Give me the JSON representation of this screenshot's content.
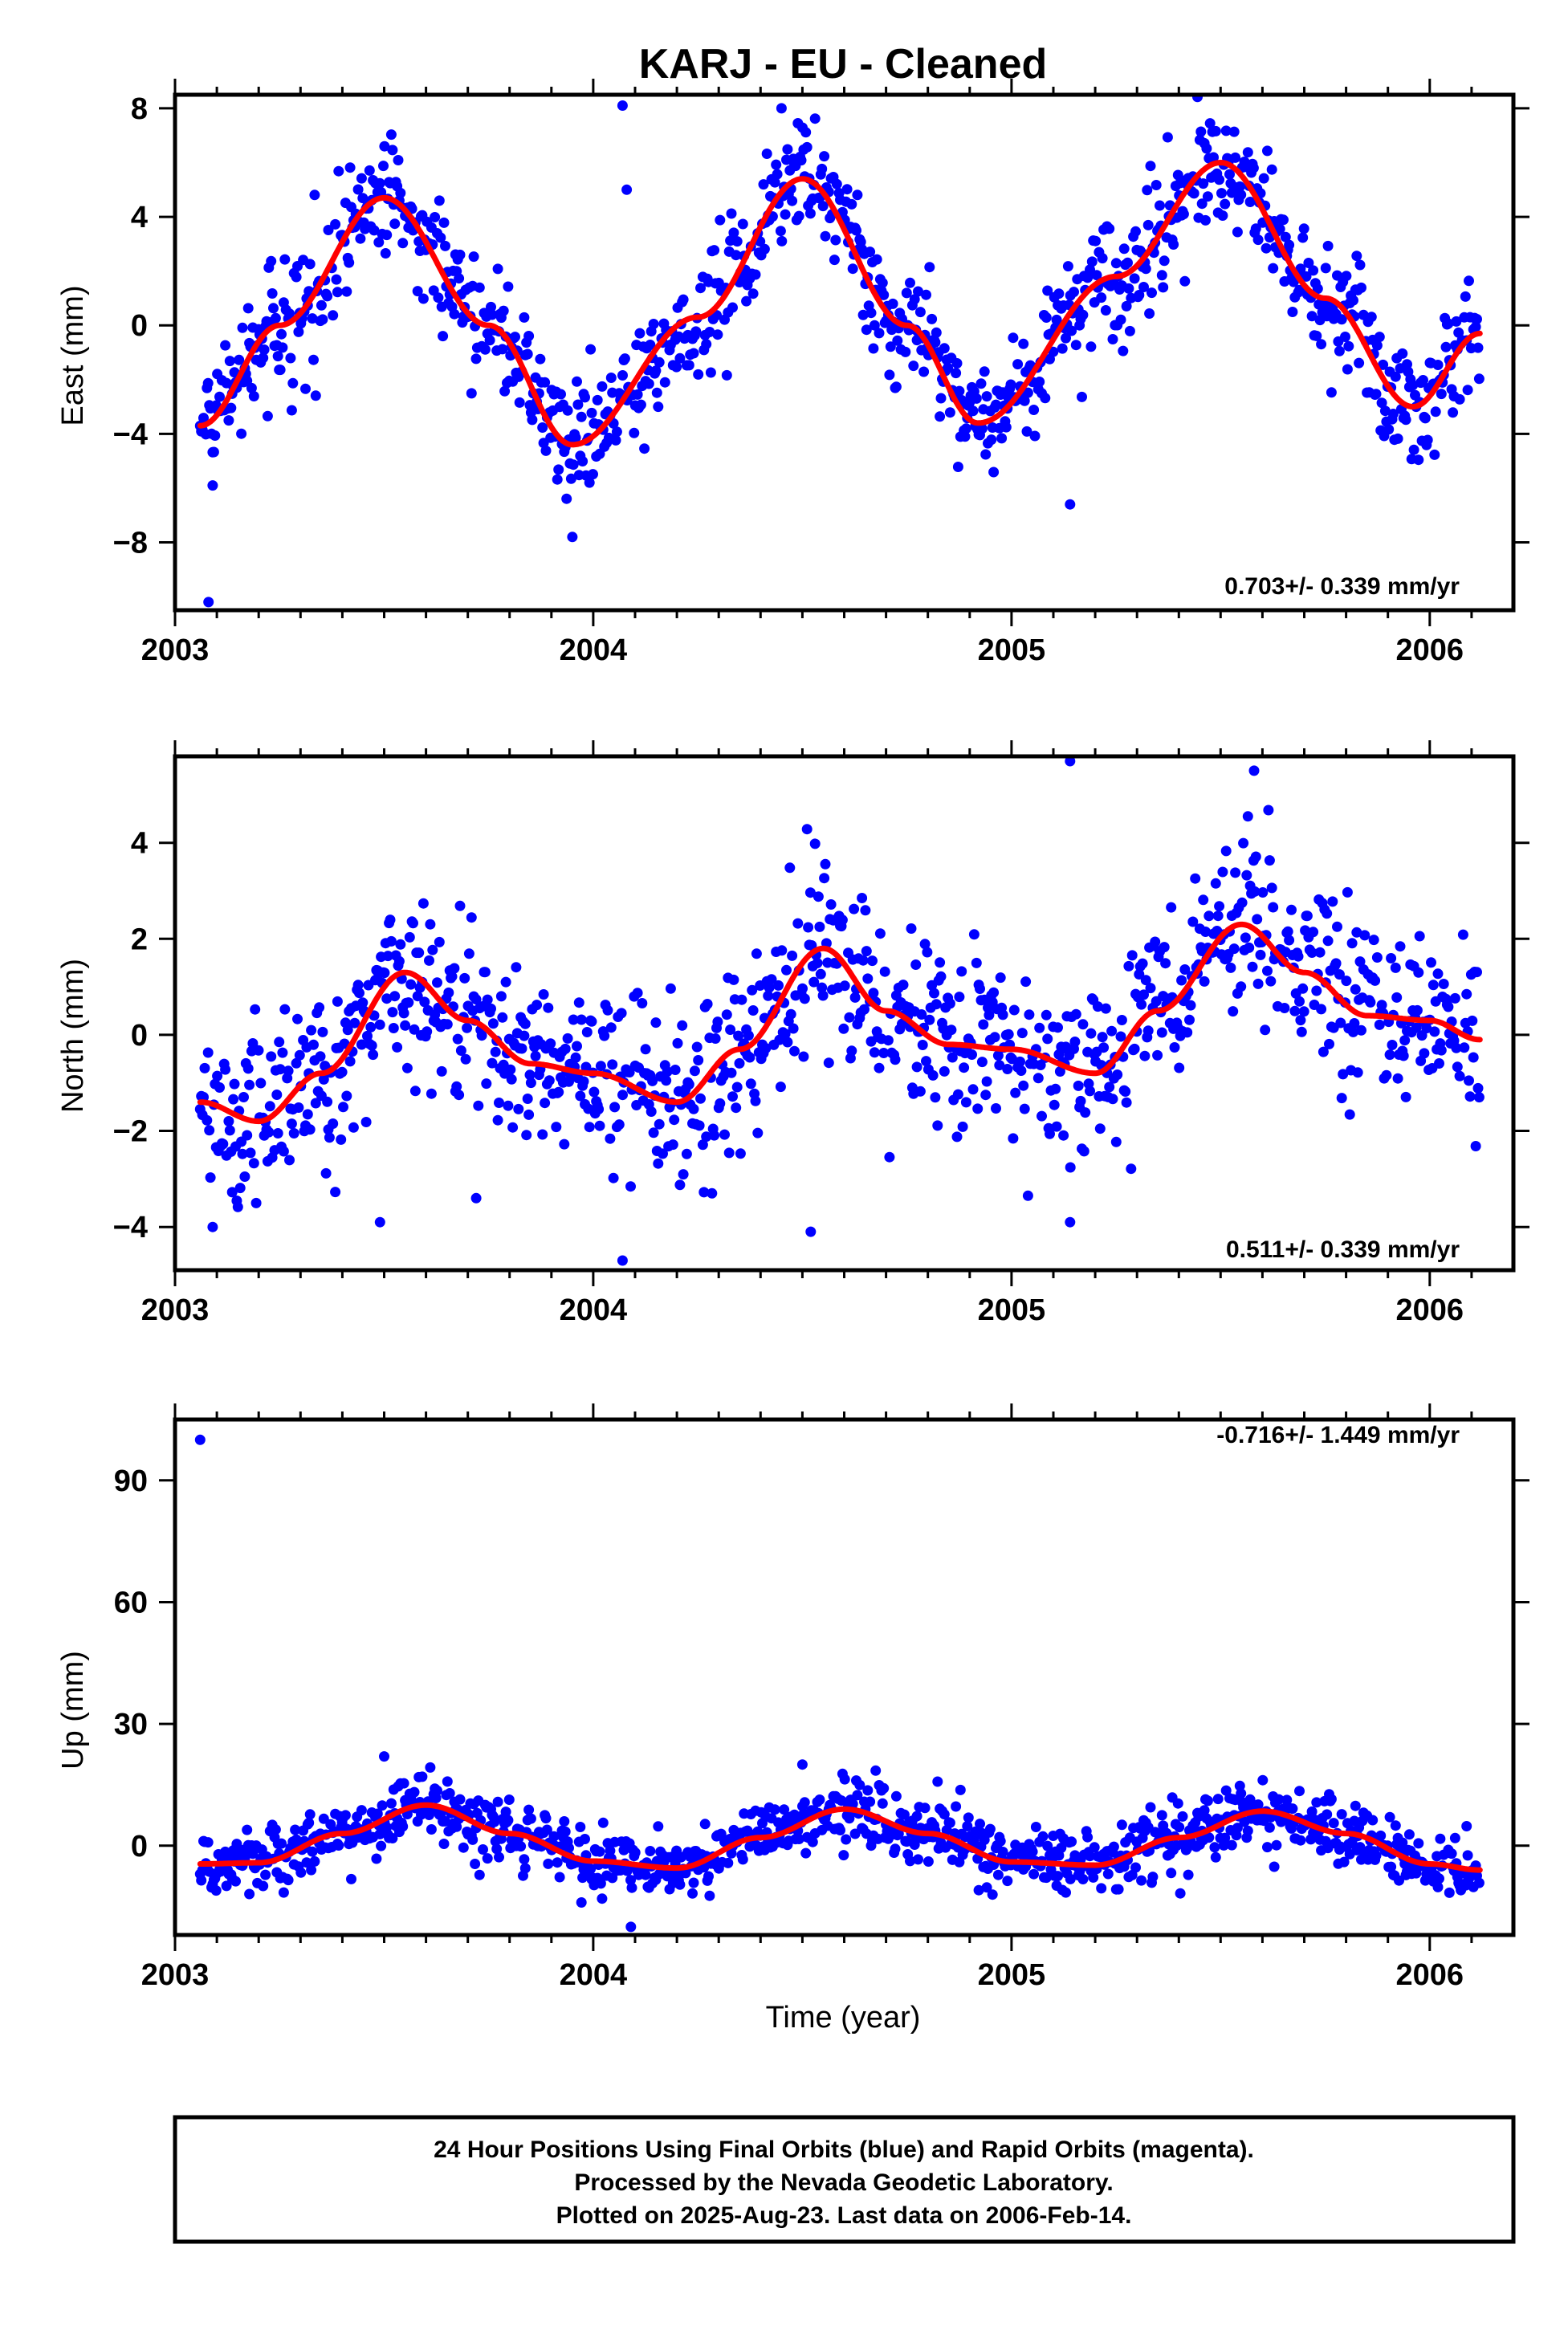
{
  "title": "KARJ  - EU - Cleaned",
  "xlabel": "Time (year)",
  "x_tick_labels": [
    "2003",
    "2004",
    "2005",
    "2006"
  ],
  "colors": {
    "points": "#0000ff",
    "fit": "#ff0000",
    "frame": "#000000",
    "background": "#ffffff"
  },
  "footer": {
    "lines": [
      "24 Hour Positions Using Final Orbits (blue) and Rapid Orbits (magenta).",
      "Processed by the Nevada Geodetic Laboratory.",
      "Plotted on 2025-Aug-23. Last data on 2006-Feb-14."
    ]
  },
  "chart_data": [
    {
      "type": "scatter",
      "component": "east",
      "ylabel": "East (mm)",
      "xlim": [
        2003.0,
        2006.2
      ],
      "ylim": [
        -10.5,
        8.5
      ],
      "y_ticks": [
        -8,
        -4,
        0,
        4,
        8
      ],
      "y_tick_labels": [
        "−8",
        "−4",
        "0",
        "4",
        "8"
      ],
      "x_ticks": [
        2003,
        2004,
        2005,
        2006
      ],
      "rate_label": "0.703+/- 0.339 mm/yr",
      "data_range": [
        2003.06,
        2006.12
      ],
      "fit": {
        "name": "fit",
        "x": [
          2003.06,
          2003.25,
          2003.5,
          2003.75,
          2003.95,
          2004.25,
          2004.5,
          2004.75,
          2004.92,
          2005.25,
          2005.5,
          2005.75,
          2005.96,
          2006.12
        ],
        "y": [
          -3.7,
          0.0,
          4.7,
          0.0,
          -4.4,
          0.3,
          5.4,
          0.0,
          -3.6,
          1.8,
          6.0,
          1.0,
          -3.0,
          -0.3
        ]
      },
      "scatter_sd": 1.1,
      "outliers": [
        [
          2003.08,
          -10.2
        ],
        [
          2004.07,
          8.1
        ],
        [
          2004.08,
          5.0
        ],
        [
          2005.14,
          -6.6
        ],
        [
          2003.09,
          -5.9
        ],
        [
          2003.95,
          -7.8
        ],
        [
          2004.45,
          8.0
        ]
      ]
    },
    {
      "type": "scatter",
      "component": "north",
      "ylabel": "North (mm)",
      "xlim": [
        2003.0,
        2006.2
      ],
      "ylim": [
        -4.9,
        5.8
      ],
      "y_ticks": [
        -4,
        -2,
        0,
        2,
        4
      ],
      "y_tick_labels": [
        "−4",
        "−2",
        "0",
        "2",
        "4"
      ],
      "x_ticks": [
        2003,
        2004,
        2005,
        2006
      ],
      "rate_label": "0.511+/- 0.339 mm/yr",
      "data_range": [
        2003.06,
        2006.12
      ],
      "fit": {
        "name": "fit",
        "x": [
          2003.06,
          2003.2,
          2003.35,
          2003.55,
          2003.7,
          2003.85,
          2004.0,
          2004.2,
          2004.35,
          2004.55,
          2004.7,
          2004.85,
          2005.0,
          2005.2,
          2005.35,
          2005.55,
          2005.7,
          2005.85,
          2006.0,
          2006.12
        ],
        "y": [
          -1.4,
          -1.8,
          -0.8,
          1.3,
          0.3,
          -0.6,
          -0.8,
          -1.4,
          -0.3,
          1.8,
          0.5,
          -0.2,
          -0.3,
          -0.8,
          0.5,
          2.3,
          1.3,
          0.4,
          0.3,
          -0.1
        ]
      },
      "scatter_sd": 0.95,
      "outliers": [
        [
          2003.09,
          -4.0
        ],
        [
          2003.49,
          -3.9
        ],
        [
          2004.07,
          -4.7
        ],
        [
          2004.52,
          -4.1
        ],
        [
          2005.14,
          5.7
        ],
        [
          2005.14,
          -3.9
        ],
        [
          2005.58,
          5.5
        ],
        [
          2003.72,
          -3.4
        ]
      ]
    },
    {
      "type": "scatter",
      "component": "up",
      "ylabel": "Up (mm)",
      "xlim": [
        2003.0,
        2006.2
      ],
      "ylim": [
        -22.0,
        105.0
      ],
      "y_ticks": [
        0,
        30,
        60,
        90
      ],
      "y_tick_labels": [
        "0",
        "30",
        "60",
        "90"
      ],
      "x_ticks": [
        2003,
        2004,
        2005,
        2006
      ],
      "rate_label": "-0.716+/- 1.449 mm/yr",
      "data_range": [
        2003.06,
        2006.12
      ],
      "fit": {
        "name": "fit",
        "x": [
          2003.06,
          2003.2,
          2003.4,
          2003.6,
          2003.8,
          2004.0,
          2004.2,
          2004.4,
          2004.6,
          2004.8,
          2005.0,
          2005.2,
          2005.4,
          2005.6,
          2005.8,
          2006.0,
          2006.12
        ],
        "y": [
          -4.5,
          -4.2,
          3.0,
          10.0,
          3.0,
          -3.8,
          -5.5,
          2.0,
          9.0,
          3.0,
          -4.0,
          -4.8,
          2.0,
          8.5,
          3.0,
          -4.5,
          -6.0
        ]
      },
      "scatter_sd": 4.0,
      "outliers": [
        [
          2003.06,
          100.0
        ],
        [
          2004.09,
          -20.0
        ],
        [
          2003.5,
          22.0
        ],
        [
          2004.5,
          20.0
        ]
      ]
    }
  ]
}
